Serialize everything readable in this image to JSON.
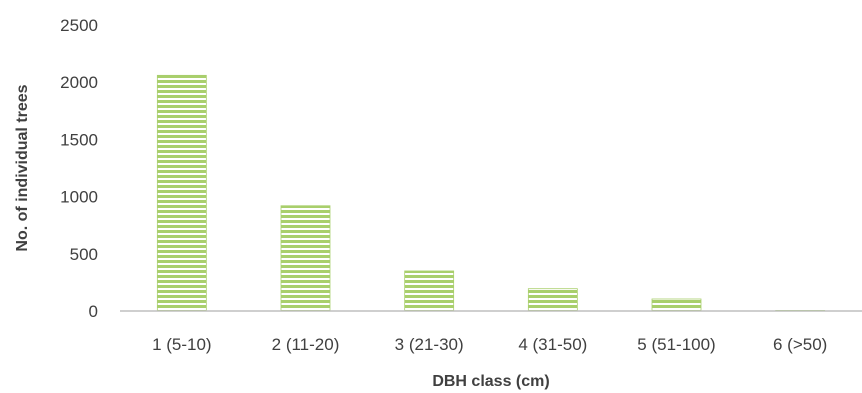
{
  "chart_data": {
    "type": "bar",
    "title": "",
    "xlabel": "DBH class (cm)",
    "ylabel": "No. of individual trees",
    "categories": [
      "1 (5-10)",
      "2 (11-20)",
      "3 (21-30)",
      "4 (31-50)",
      "5 (51-100)",
      "6 (>50)"
    ],
    "values": [
      2060,
      920,
      350,
      195,
      105,
      5
    ],
    "ylim": [
      0,
      2500
    ],
    "yticks": [
      "0",
      "500",
      "1000",
      "1500",
      "2000",
      "2500"
    ],
    "grid": false,
    "legend": "none",
    "colors": {
      "bar_fill": "#a9cf6c",
      "bar_stripe": "#ffffff",
      "axis": "#bfbfbf",
      "text": "#404040"
    }
  }
}
